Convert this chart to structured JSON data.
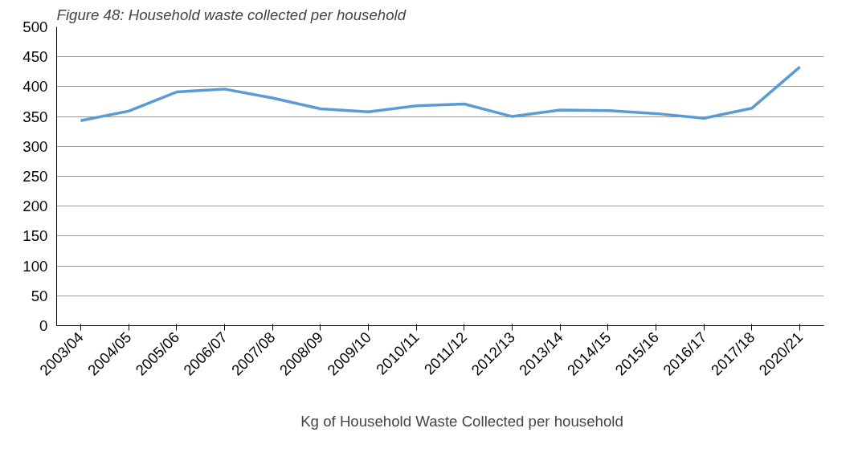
{
  "chart_data": {
    "type": "line",
    "title": "Figure 48: Household waste collected per household",
    "categories": [
      "2003/04",
      "2004/05",
      "2005/06",
      "2006/07",
      "2007/08",
      "2008/09",
      "2009/10",
      "2010/11",
      "2011/12",
      "2012/13",
      "2013/14",
      "2014/15",
      "2015/16",
      "2016/17",
      "2017/18",
      "2020/21"
    ],
    "series": [
      {
        "name": "Kg of Household Waste Collected per household",
        "color": "#5b9bd5",
        "values": [
          343,
          359,
          391,
          396,
          381,
          363,
          358,
          368,
          371,
          350,
          361,
          360,
          355,
          347,
          364,
          433
        ]
      }
    ],
    "ylim": [
      0,
      500
    ],
    "yticks": [
      0,
      50,
      100,
      150,
      200,
      250,
      300,
      350,
      400,
      450,
      500
    ],
    "grid": "y",
    "legend": "bottom",
    "marker": "none",
    "line_style": "solid"
  }
}
